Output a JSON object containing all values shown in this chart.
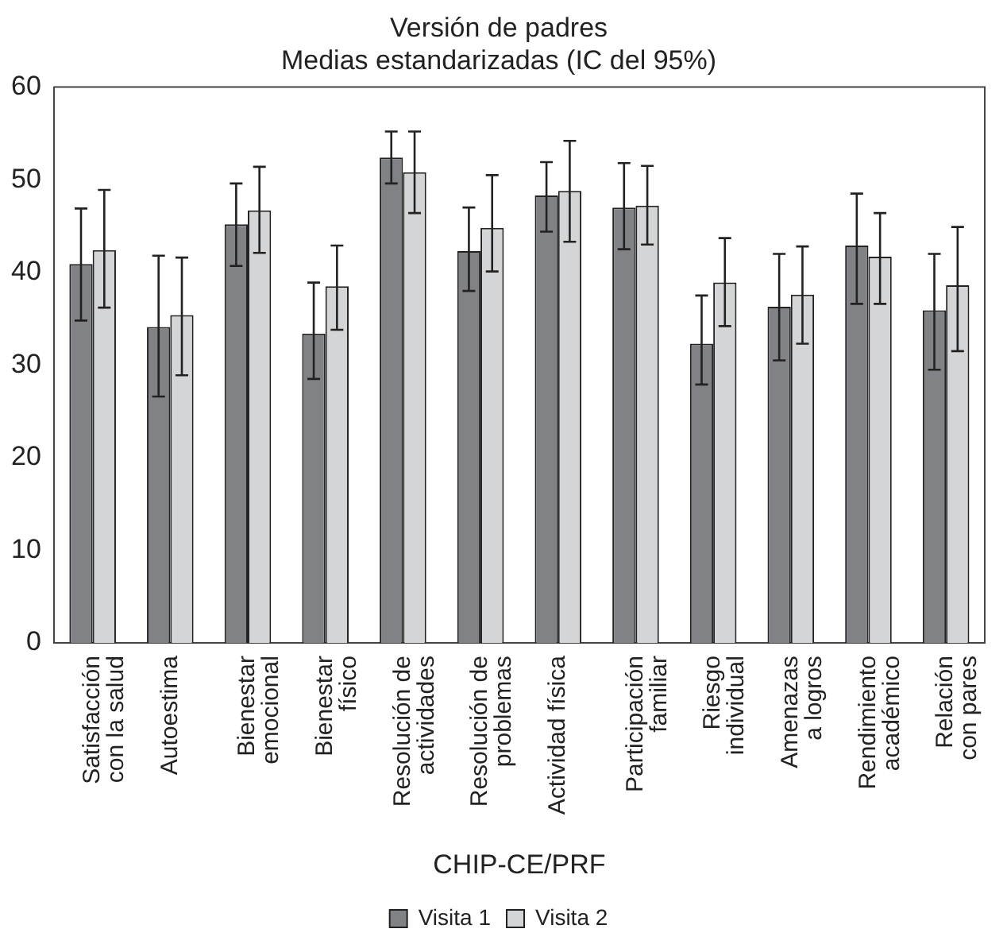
{
  "chart_data": {
    "type": "bar",
    "title": "Versión de padres\nMedias estandarizadas (IC del 95%)",
    "xlabel": "CHIP-CE/PRF",
    "categories": [
      "Satisfacción\ncon la salud",
      "Autoestima",
      "Bienestar\nemocional",
      "Bienestar\nfísico",
      "Resolución de\nactividades",
      "Resolución de\nproblemas",
      "Actividad física",
      "Participación\nfamiliar",
      "Riesgo\nindividual",
      "Amenazas\na logros",
      "Rendimiento\nacadémico",
      "Relación\ncon pares"
    ],
    "series": [
      {
        "name": "Visita 1",
        "color": "#808285",
        "values": [
          40.9,
          34.1,
          45.2,
          33.4,
          52.4,
          42.3,
          48.3,
          47.0,
          32.3,
          36.3,
          42.9,
          35.9
        ],
        "errors": [
          [
            34.8,
            46.9
          ],
          [
            26.6,
            41.8
          ],
          [
            40.7,
            49.6
          ],
          [
            28.5,
            38.9
          ],
          [
            49.6,
            55.2
          ],
          [
            38.0,
            47.0
          ],
          [
            44.4,
            51.9
          ],
          [
            42.5,
            51.8
          ],
          [
            27.9,
            37.5
          ],
          [
            30.5,
            42.0
          ],
          [
            36.6,
            48.5
          ],
          [
            29.5,
            42.0
          ]
        ]
      },
      {
        "name": "Visita 2",
        "color": "#d4d5d7",
        "values": [
          42.4,
          35.4,
          46.7,
          38.5,
          50.8,
          44.8,
          48.8,
          47.2,
          38.9,
          37.6,
          41.7,
          38.6
        ],
        "errors": [
          [
            36.2,
            48.9
          ],
          [
            28.9,
            41.6
          ],
          [
            42.1,
            51.4
          ],
          [
            33.8,
            42.9
          ],
          [
            46.4,
            55.2
          ],
          [
            40.1,
            50.5
          ],
          [
            43.3,
            54.2
          ],
          [
            43.0,
            51.5
          ],
          [
            34.2,
            43.7
          ],
          [
            32.3,
            42.8
          ],
          [
            36.6,
            46.4
          ],
          [
            31.5,
            44.9
          ]
        ]
      }
    ],
    "ylim": [
      0,
      60
    ],
    "yticks": [
      0,
      10,
      20,
      30,
      40,
      50,
      60
    ],
    "grid": false,
    "legend": "bottom"
  }
}
